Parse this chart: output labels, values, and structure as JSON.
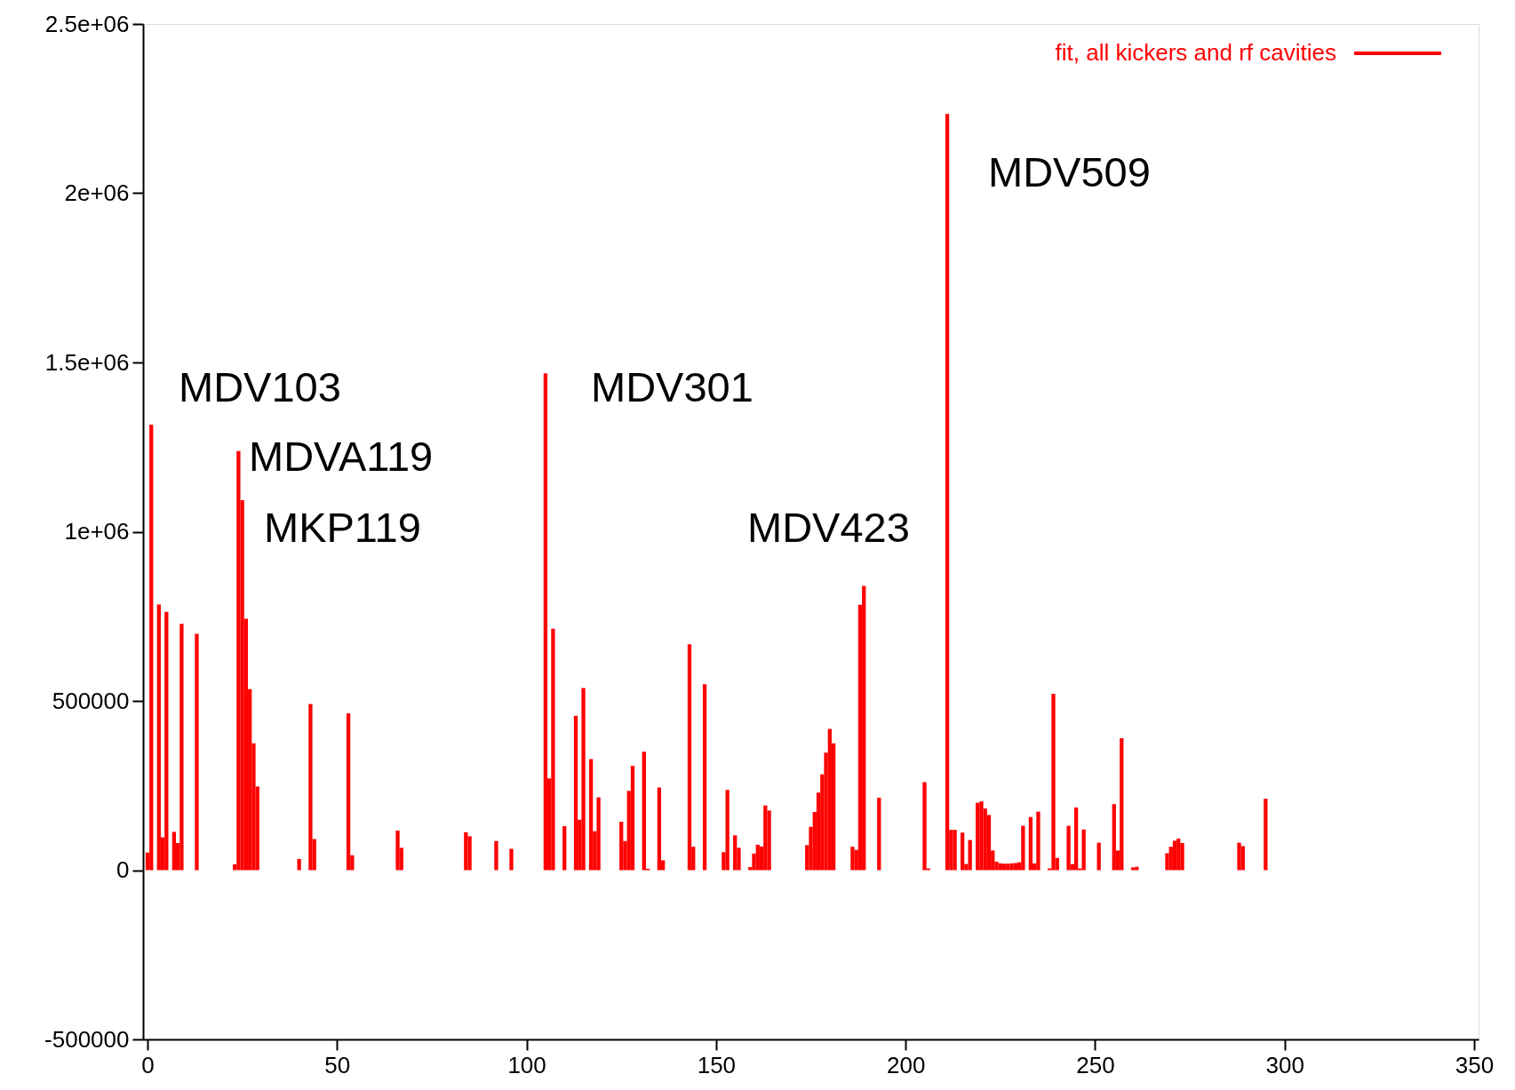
{
  "chart_data": {
    "type": "bar",
    "x": [
      0,
      1,
      3,
      4,
      5,
      7,
      8,
      9,
      13,
      23,
      24,
      25,
      26,
      27,
      28,
      29,
      40,
      43,
      44,
      53,
      54,
      66,
      67,
      84,
      85,
      92,
      96,
      105,
      106,
      107,
      110,
      113,
      114,
      115,
      117,
      118,
      119,
      125,
      126,
      127,
      128,
      131,
      132,
      135,
      136,
      143,
      144,
      147,
      152,
      153,
      155,
      156,
      159,
      160,
      161,
      162,
      163,
      164,
      174,
      175,
      176,
      177,
      178,
      179,
      180,
      181,
      186,
      187,
      188,
      189,
      193,
      205,
      206,
      211,
      212,
      213,
      215,
      216,
      217,
      219,
      220,
      221,
      222,
      223,
      224,
      225,
      226,
      227,
      228,
      229,
      230,
      231,
      233,
      234,
      235,
      238,
      239,
      240,
      243,
      244,
      245,
      246,
      247,
      251,
      255,
      256,
      257,
      260,
      261,
      269,
      270,
      271,
      272,
      273,
      288,
      289,
      295
    ],
    "series": [
      {
        "name": "fit, all kickers and rf cavities",
        "color": "#ff0000",
        "values": [
          52000,
          1316000,
          785000,
          97000,
          763000,
          113000,
          80000,
          728000,
          698000,
          17000,
          1238000,
          1093000,
          743000,
          535000,
          375000,
          247000,
          33000,
          491000,
          92000,
          463000,
          44000,
          117000,
          66000,
          112000,
          100000,
          86000,
          63000,
          1468000,
          271000,
          713000,
          130000,
          456000,
          149000,
          538000,
          328000,
          115000,
          215000,
          143000,
          86000,
          234000,
          308000,
          350000,
          4000,
          244000,
          29000,
          667000,
          69000,
          549000,
          53000,
          237000,
          103000,
          66000,
          9000,
          49000,
          75000,
          70000,
          191000,
          176000,
          74000,
          128000,
          172000,
          229000,
          283000,
          347000,
          417000,
          375000,
          69000,
          60000,
          784000,
          840000,
          214000,
          260000,
          5000,
          2234000,
          119000,
          119000,
          111000,
          18000,
          89000,
          199000,
          203000,
          182000,
          163000,
          58000,
          25000,
          20000,
          19000,
          19000,
          20000,
          21000,
          23000,
          131000,
          157000,
          20000,
          173000,
          5000,
          521000,
          36000,
          131000,
          18000,
          185000,
          5000,
          120000,
          81000,
          195000,
          58000,
          390000,
          8000,
          10000,
          50000,
          69000,
          87000,
          93000,
          80000,
          81000,
          71000,
          211000
        ]
      }
    ],
    "xlim": [
      0,
      350
    ],
    "xticks": [
      0,
      50,
      100,
      150,
      200,
      250,
      300,
      350
    ],
    "ylim": [
      -500000,
      2500000
    ],
    "yticks": [
      -500000,
      0,
      500000,
      {
        "value": 1000000,
        "label": "1e+06"
      },
      {
        "value": 1500000,
        "label": "1.5e+06"
      },
      {
        "value": 2000000,
        "label": "2e+06"
      },
      {
        "value": 2500000,
        "label": "2.5e+06"
      }
    ],
    "annotations": [
      "MDV103",
      "MDVA119",
      "MKP119",
      "MDV301",
      "MDV423",
      "MDV509"
    ],
    "legend": "top right",
    "grid": false
  }
}
